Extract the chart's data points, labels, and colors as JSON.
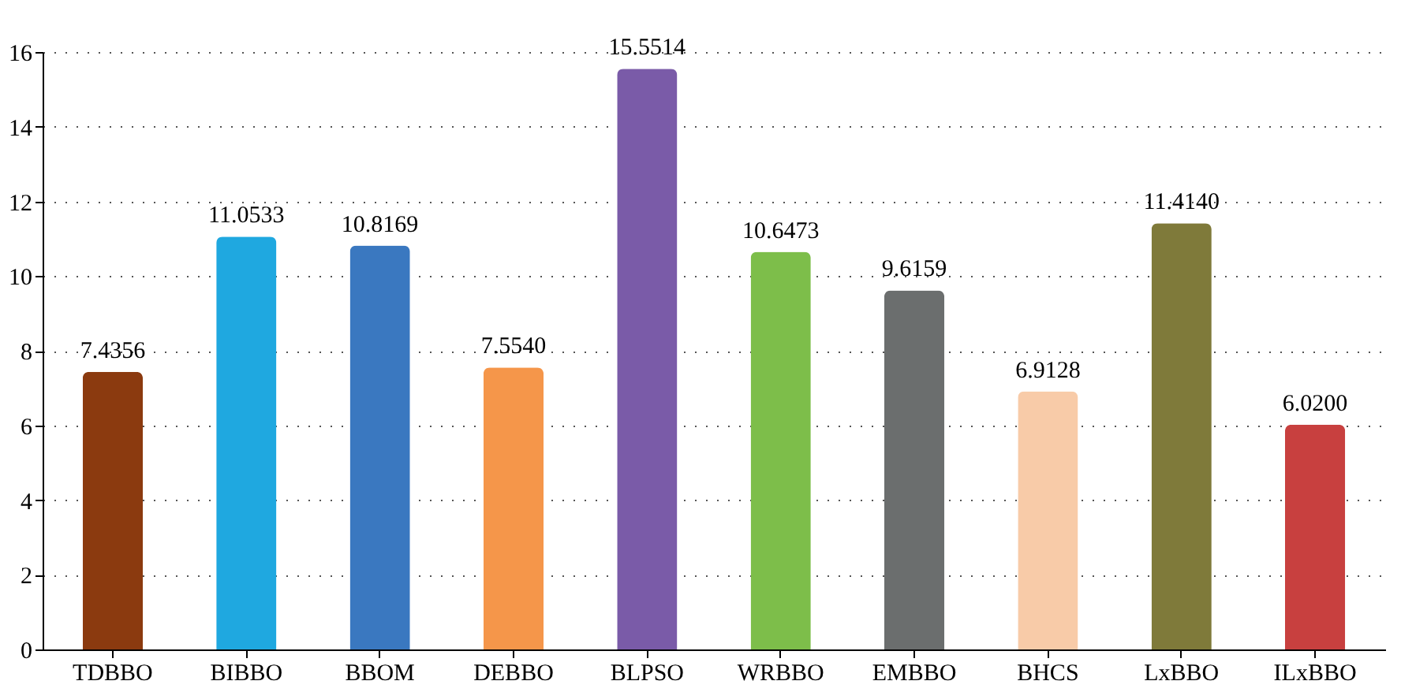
{
  "chart_data": {
    "type": "bar",
    "categories": [
      "TDBBO",
      "BIBBO",
      "BBOM",
      "DEBBO",
      "BLPSO",
      "WRBBO",
      "EMBBO",
      "BHCS",
      "LxBBO",
      "ILxBBO"
    ],
    "values": [
      7.4356,
      11.0533,
      10.8169,
      7.554,
      15.5514,
      10.6473,
      9.6159,
      6.9128,
      11.414,
      6.02
    ],
    "colors": [
      "#8b3a0f",
      "#1fa8e0",
      "#3a78c0",
      "#f5964a",
      "#7a5ba8",
      "#7dbe4a",
      "#6b6e6e",
      "#f8cba8",
      "#7f7a3a",
      "#c8403f"
    ],
    "value_labels": [
      "7.4356",
      "11.0533",
      "10.8169",
      "7.5540",
      "15.5514",
      "10.6473",
      "9.6159",
      "6.9128",
      "11.4140",
      "6.0200"
    ],
    "ylim": [
      0,
      16
    ],
    "yticks": [
      0,
      2,
      4,
      6,
      8,
      10,
      12,
      14,
      16
    ],
    "grid": "y"
  }
}
